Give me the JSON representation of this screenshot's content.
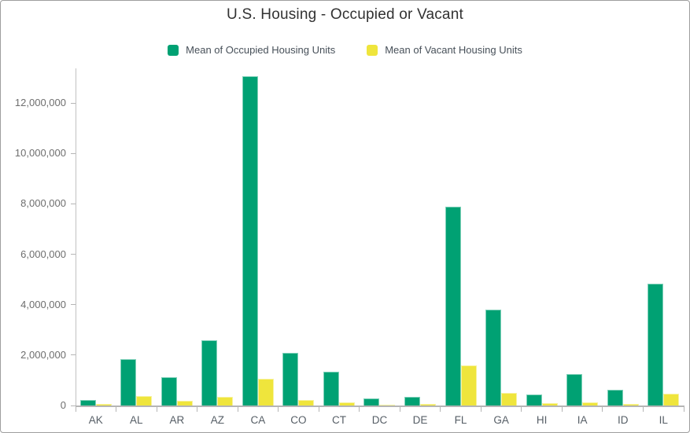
{
  "title": "U.S. Housing - Occupied or Vacant",
  "legend": [
    {
      "label": "Mean of Occupied Housing Units",
      "color": "#00a173"
    },
    {
      "label": "Mean of Vacant Housing Units",
      "color": "#efe53c"
    }
  ],
  "colors": {
    "occupied_bar": "#00a173",
    "vacant_bar": "#efe53c",
    "axis_line": "#c2c2c2",
    "tick": "#b5b5b5",
    "y_label_text": "#6e6e6e",
    "x_label_text": "#565e66",
    "title_text": "#323232",
    "frame_border": "#9e9e9e"
  },
  "chart_data": {
    "type": "bar",
    "title": "U.S. Housing - Occupied or Vacant",
    "xlabel": "",
    "ylabel": "",
    "grid": false,
    "legend_position": "top",
    "categories": [
      "AK",
      "AL",
      "AR",
      "AZ",
      "CA",
      "CO",
      "CT",
      "DC",
      "DE",
      "FL",
      "GA",
      "HI",
      "IA",
      "ID",
      "IL"
    ],
    "series": [
      {
        "name": "Mean of Occupied Housing Units",
        "color": "#00a173",
        "values": [
          220000,
          1840000,
          1130000,
          2600000,
          13050000,
          2100000,
          1350000,
          270000,
          340000,
          7900000,
          3800000,
          450000,
          1240000,
          630000,
          4830000
        ]
      },
      {
        "name": "Mean of Vacant Housing Units",
        "color": "#efe53c",
        "values": [
          60000,
          360000,
          185000,
          350000,
          1060000,
          230000,
          110000,
          35000,
          70000,
          1600000,
          490000,
          80000,
          120000,
          70000,
          460000
        ]
      }
    ],
    "y_ticks": [
      {
        "value": 0,
        "label": "0"
      },
      {
        "value": 2000000,
        "label": "2,000,000"
      },
      {
        "value": 4000000,
        "label": "4,000,000"
      },
      {
        "value": 6000000,
        "label": "6,000,000"
      },
      {
        "value": 8000000,
        "label": "8,000,000"
      },
      {
        "value": 10000000,
        "label": "10,000,000"
      },
      {
        "value": 12000000,
        "label": "12,000,000"
      }
    ],
    "ylim": [
      0,
      13310000
    ]
  }
}
